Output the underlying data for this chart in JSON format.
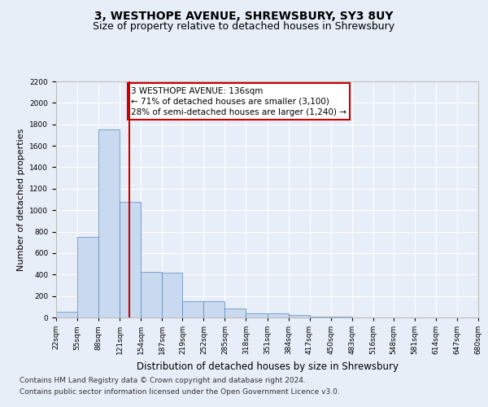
{
  "title1": "3, WESTHOPE AVENUE, SHREWSBURY, SY3 8UY",
  "title2": "Size of property relative to detached houses in Shrewsbury",
  "xlabel": "Distribution of detached houses by size in Shrewsbury",
  "ylabel": "Number of detached properties",
  "bar_values": [
    50,
    750,
    1750,
    1075,
    425,
    420,
    155,
    155,
    80,
    40,
    35,
    25,
    10,
    5,
    3,
    2,
    1,
    1,
    0,
    0
  ],
  "bin_edges": [
    22,
    55,
    88,
    121,
    154,
    187,
    219,
    252,
    285,
    318,
    351,
    384,
    417,
    450,
    483,
    516,
    548,
    581,
    614,
    647,
    680
  ],
  "tick_labels": [
    "22sqm",
    "55sqm",
    "88sqm",
    "121sqm",
    "154sqm",
    "187sqm",
    "219sqm",
    "252sqm",
    "285sqm",
    "318sqm",
    "351sqm",
    "384sqm",
    "417sqm",
    "450sqm",
    "483sqm",
    "516sqm",
    "548sqm",
    "581sqm",
    "614sqm",
    "647sqm",
    "680sqm"
  ],
  "bar_color": "#c9d9f0",
  "bar_edge_color": "#5588bb",
  "vline_x": 136,
  "vline_color": "#cc0000",
  "ylim": [
    0,
    2200
  ],
  "yticks": [
    0,
    200,
    400,
    600,
    800,
    1000,
    1200,
    1400,
    1600,
    1800,
    2000,
    2200
  ],
  "annotation_text": "3 WESTHOPE AVENUE: 136sqm\n← 71% of detached houses are smaller (3,100)\n28% of semi-detached houses are larger (1,240) →",
  "annotation_box_color": "#ffffff",
  "annotation_box_edge_color": "#cc0000",
  "footnote1": "Contains HM Land Registry data © Crown copyright and database right 2024.",
  "footnote2": "Contains public sector information licensed under the Open Government Licence v3.0.",
  "background_color": "#e8eef8",
  "plot_bg_color": "#e8eef8",
  "grid_color": "#ffffff",
  "title1_fontsize": 10,
  "title2_fontsize": 9,
  "xlabel_fontsize": 8.5,
  "ylabel_fontsize": 8,
  "tick_fontsize": 6.5,
  "footnote_fontsize": 6.5,
  "annotation_fontsize": 7.5
}
